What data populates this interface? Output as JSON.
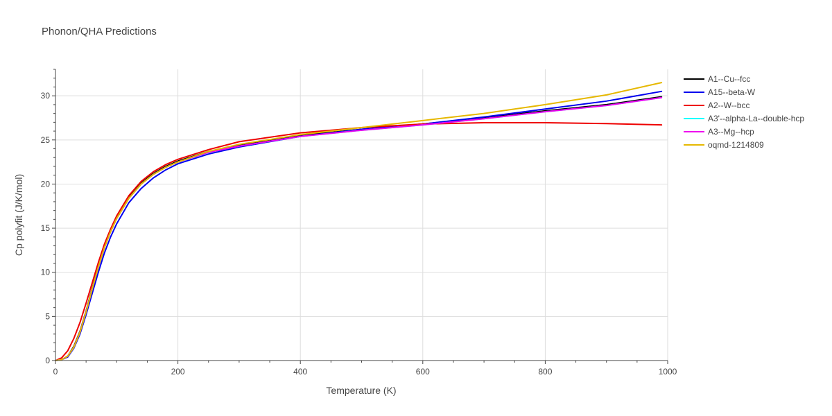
{
  "chart_data": {
    "type": "line",
    "title": "Phonon/QHA Predictions",
    "xlabel": "Temperature (K)",
    "ylabel": "Cp polyfit (J/K/mol)",
    "xlim": [
      0,
      1000
    ],
    "ylim": [
      0,
      33
    ],
    "xticks": [
      0,
      200,
      400,
      600,
      800,
      1000
    ],
    "yticks": [
      0,
      5,
      10,
      15,
      20,
      25,
      30
    ],
    "grid": true,
    "legend_position": "right",
    "x": [
      0,
      10,
      20,
      30,
      40,
      50,
      60,
      70,
      80,
      90,
      100,
      120,
      140,
      160,
      180,
      200,
      250,
      300,
      400,
      500,
      600,
      700,
      800,
      900,
      990
    ],
    "series": [
      {
        "name": "A1--Cu--fcc",
        "color": "#000000",
        "values": [
          0,
          0.1,
          0.5,
          1.6,
          3.3,
          5.6,
          8.2,
          10.7,
          12.9,
          14.7,
          16.2,
          18.5,
          20.1,
          21.2,
          22.0,
          22.6,
          23.7,
          24.4,
          25.5,
          26.2,
          26.8,
          27.5,
          28.3,
          29.0,
          29.9
        ]
      },
      {
        "name": "A15--beta-W",
        "color": "#0000ee",
        "values": [
          0,
          0.1,
          0.4,
          1.4,
          3.0,
          5.2,
          7.6,
          10.0,
          12.2,
          14.0,
          15.5,
          17.9,
          19.5,
          20.7,
          21.6,
          22.3,
          23.4,
          24.2,
          25.4,
          26.2,
          26.8,
          27.6,
          28.5,
          29.4,
          30.5
        ]
      },
      {
        "name": "A2--W--bcc",
        "color": "#ee0000",
        "values": [
          0,
          0.3,
          1.1,
          2.5,
          4.3,
          6.5,
          8.8,
          11.1,
          13.2,
          14.9,
          16.4,
          18.7,
          20.3,
          21.4,
          22.2,
          22.8,
          23.9,
          24.8,
          25.8,
          26.4,
          26.8,
          26.95,
          26.95,
          26.85,
          26.7
        ]
      },
      {
        "name": "A3'--alpha-La--double-hcp",
        "color": "#00ffff",
        "values": [
          0,
          0.1,
          0.5,
          1.5,
          3.2,
          5.5,
          8.1,
          10.6,
          12.8,
          14.6,
          16.1,
          18.4,
          20.0,
          21.1,
          21.9,
          22.5,
          23.6,
          24.3,
          25.4,
          26.1,
          26.7,
          27.4,
          28.2,
          28.9,
          29.8
        ]
      },
      {
        "name": "A3--Mg--hcp",
        "color": "#ee00ee",
        "values": [
          0,
          0.1,
          0.5,
          1.5,
          3.2,
          5.5,
          8.1,
          10.6,
          12.8,
          14.6,
          16.1,
          18.4,
          20.0,
          21.1,
          21.9,
          22.5,
          23.6,
          24.3,
          25.4,
          26.1,
          26.7,
          27.4,
          28.2,
          28.9,
          29.8
        ]
      },
      {
        "name": "oqmd-1214809",
        "color": "#e6b800",
        "values": [
          0,
          0.1,
          0.5,
          1.5,
          3.2,
          5.5,
          8.1,
          10.6,
          12.8,
          14.6,
          16.1,
          18.4,
          20.0,
          21.1,
          21.9,
          22.5,
          23.7,
          24.5,
          25.6,
          26.4,
          27.2,
          28.0,
          29.0,
          30.1,
          31.5
        ]
      }
    ]
  }
}
